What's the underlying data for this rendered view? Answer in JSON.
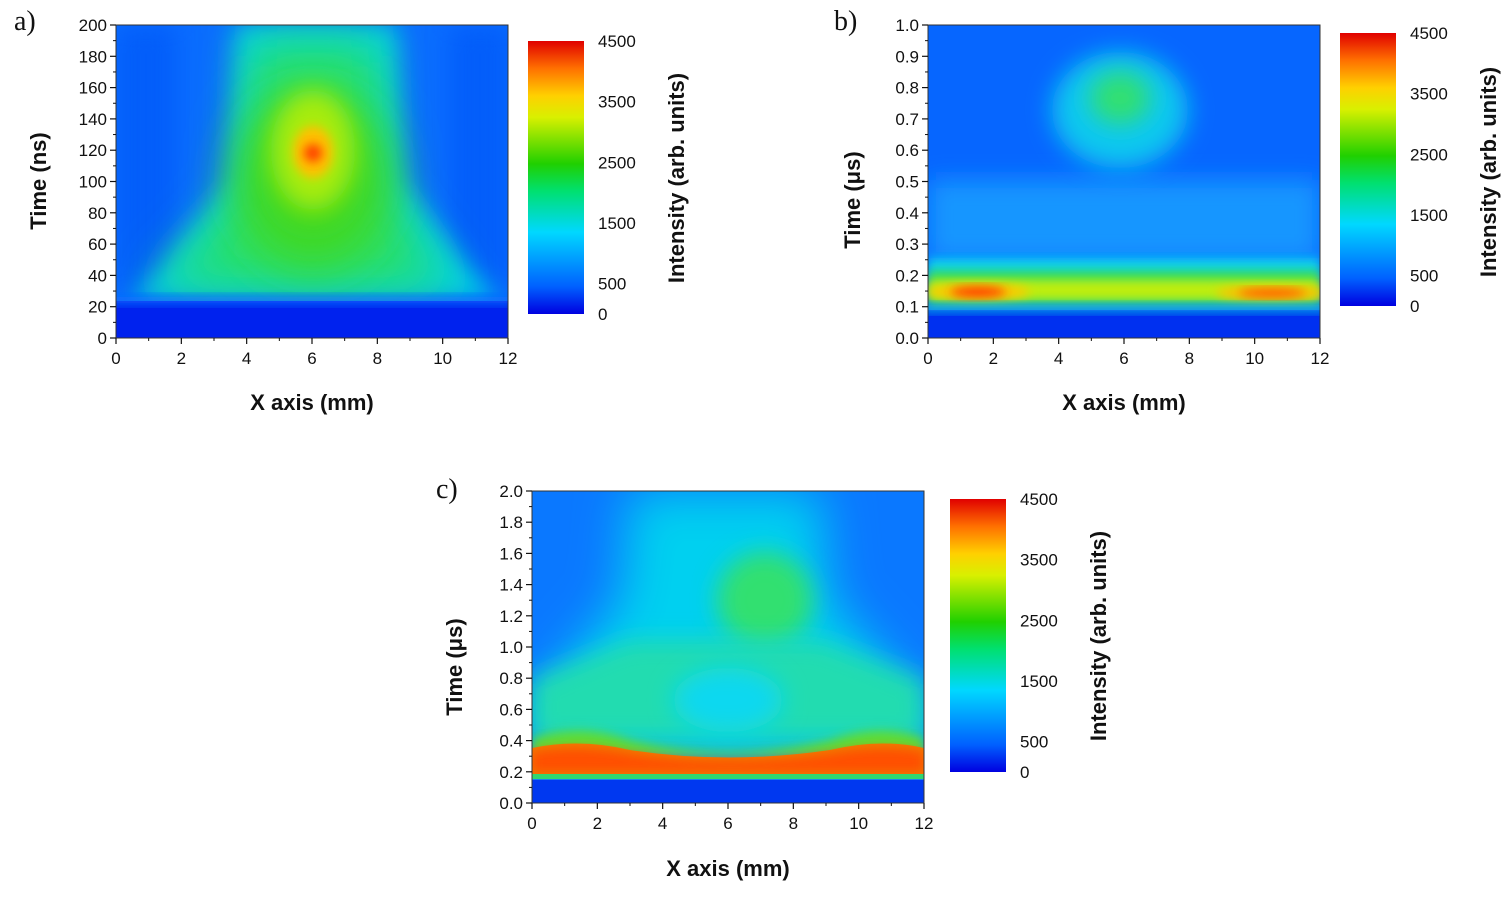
{
  "figure": {
    "colormap": [
      "#0000e0",
      "#0060ff",
      "#00d8ff",
      "#00e070",
      "#20d000",
      "#d8f000",
      "#ffd000",
      "#ff7000",
      "#e00000"
    ]
  },
  "chart_data": [
    {
      "type": "heatmap",
      "panel_label": "a)",
      "xlabel": "X axis (mm)",
      "ylabel": "Time (ns)",
      "xlim": [
        0,
        12
      ],
      "ylim": [
        0,
        200
      ],
      "xticks": [
        "0",
        "2",
        "4",
        "6",
        "8",
        "10",
        "12"
      ],
      "yticks": [
        "0",
        "20",
        "40",
        "60",
        "80",
        "100",
        "120",
        "140",
        "160",
        "180",
        "200"
      ],
      "colorbar": {
        "label": "Intensity (arb. units)",
        "ticks": [
          "0",
          "500",
          "1500",
          "2500",
          "3500",
          "4500"
        ],
        "range": [
          0,
          4500
        ]
      },
      "background": 700,
      "features": [
        {
          "desc": "dark band below onset",
          "x": [
            0,
            12
          ],
          "y": [
            0,
            25
          ],
          "value": 200
        },
        {
          "desc": "green plume widening toward bottom",
          "center_x": 6.1,
          "center_y": 75,
          "value": 2200
        },
        {
          "desc": "hot spot",
          "center_x": 6.1,
          "center_y": 118,
          "value": 4100
        }
      ]
    },
    {
      "type": "heatmap",
      "panel_label": "b)",
      "xlabel": "X axis (mm)",
      "ylabel": "Time (μs)",
      "xlim": [
        0,
        12
      ],
      "ylim": [
        0,
        1.0
      ],
      "xticks": [
        "0",
        "2",
        "4",
        "6",
        "8",
        "10",
        "12"
      ],
      "yticks": [
        "0.0",
        "0.1",
        "0.2",
        "0.3",
        "0.4",
        "0.5",
        "0.6",
        "0.7",
        "0.8",
        "0.9",
        "1.0"
      ],
      "colorbar": {
        "label": "Intensity (arb. units)",
        "ticks": [
          "0",
          "500",
          "1500",
          "2500",
          "3500",
          "4500"
        ],
        "range": [
          0,
          4500
        ]
      },
      "background": 600,
      "features": [
        {
          "desc": "dark band at bottom",
          "x": [
            0,
            12
          ],
          "y": [
            0,
            0.07
          ],
          "value": 250
        },
        {
          "desc": "bright horizontal band",
          "center_y": 0.14,
          "value": 2600
        },
        {
          "desc": "hot spots in band",
          "centers_x": [
            1.6,
            10.5
          ],
          "center_y": 0.14,
          "value": 4000
        },
        {
          "desc": "cyan blob",
          "center_x": 6.0,
          "center_y": 0.76,
          "value": 1700
        }
      ]
    },
    {
      "type": "heatmap",
      "panel_label": "c)",
      "xlabel": "X axis (mm)",
      "ylabel": "Time (μs)",
      "xlim": [
        0,
        12
      ],
      "ylim": [
        0,
        2.0
      ],
      "xticks": [
        "0",
        "2",
        "4",
        "6",
        "8",
        "10",
        "12"
      ],
      "yticks": [
        "0.0",
        "0.2",
        "0.4",
        "0.6",
        "0.8",
        "1.0",
        "1.2",
        "1.4",
        "1.6",
        "1.8",
        "2.0"
      ],
      "colorbar": {
        "label": "Intensity (arb. units)",
        "ticks": [
          "0",
          "500",
          "1500",
          "2500",
          "3500",
          "4500"
        ],
        "range": [
          0,
          4500
        ]
      },
      "background": 900,
      "features": [
        {
          "desc": "dark band at bottom",
          "x": [
            0,
            12
          ],
          "y": [
            0,
            0.16
          ],
          "value": 300
        },
        {
          "desc": "orange band",
          "y": [
            0.18,
            0.32
          ],
          "value": 4100
        },
        {
          "desc": "cyan-green upper region",
          "center_x": 7.0,
          "center_y": 1.3,
          "value": 2100
        }
      ]
    }
  ]
}
